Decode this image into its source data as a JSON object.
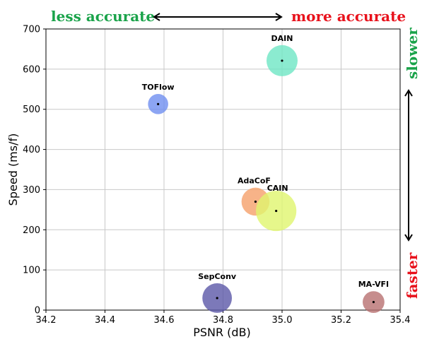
{
  "chart_data": {
    "type": "scatter",
    "xlabel": "PSNR (dB)",
    "ylabel": "Speed (ms/f)",
    "xlim": [
      34.2,
      35.4
    ],
    "ylim": [
      0,
      700
    ],
    "xticks": [
      "34.2",
      "34.4",
      "34.6",
      "34.8",
      "35.0",
      "35.2",
      "35.4"
    ],
    "yticks": [
      "0",
      "100",
      "200",
      "300",
      "400",
      "500",
      "600",
      "700"
    ],
    "grid": true,
    "points": [
      {
        "name": "DAIN",
        "x": 35.0,
        "y": 621,
        "color": "#6ee6c4",
        "size": 2
      },
      {
        "name": "TOFlow",
        "x": 34.58,
        "y": 513,
        "color": "#6f8ff0",
        "size": 1.3
      },
      {
        "name": "AdaCoF",
        "x": 34.91,
        "y": 270,
        "color": "#f5a06a",
        "size": 1.8
      },
      {
        "name": "CAIN",
        "x": 34.98,
        "y": 247,
        "color": "#e0f56e",
        "size": 2.6
      },
      {
        "name": "SepConv",
        "x": 34.78,
        "y": 30,
        "color": "#5b58a8",
        "size": 1.9
      },
      {
        "name": "MA-VFI",
        "x": 35.31,
        "y": 20,
        "color": "#b87070",
        "size": 1.4
      }
    ]
  },
  "annotations": {
    "less_accurate": "less accurate",
    "more_accurate": "more accurate",
    "slower": "slower",
    "faster": "faster",
    "green": "#1aa34a",
    "red": "#e8121c"
  }
}
